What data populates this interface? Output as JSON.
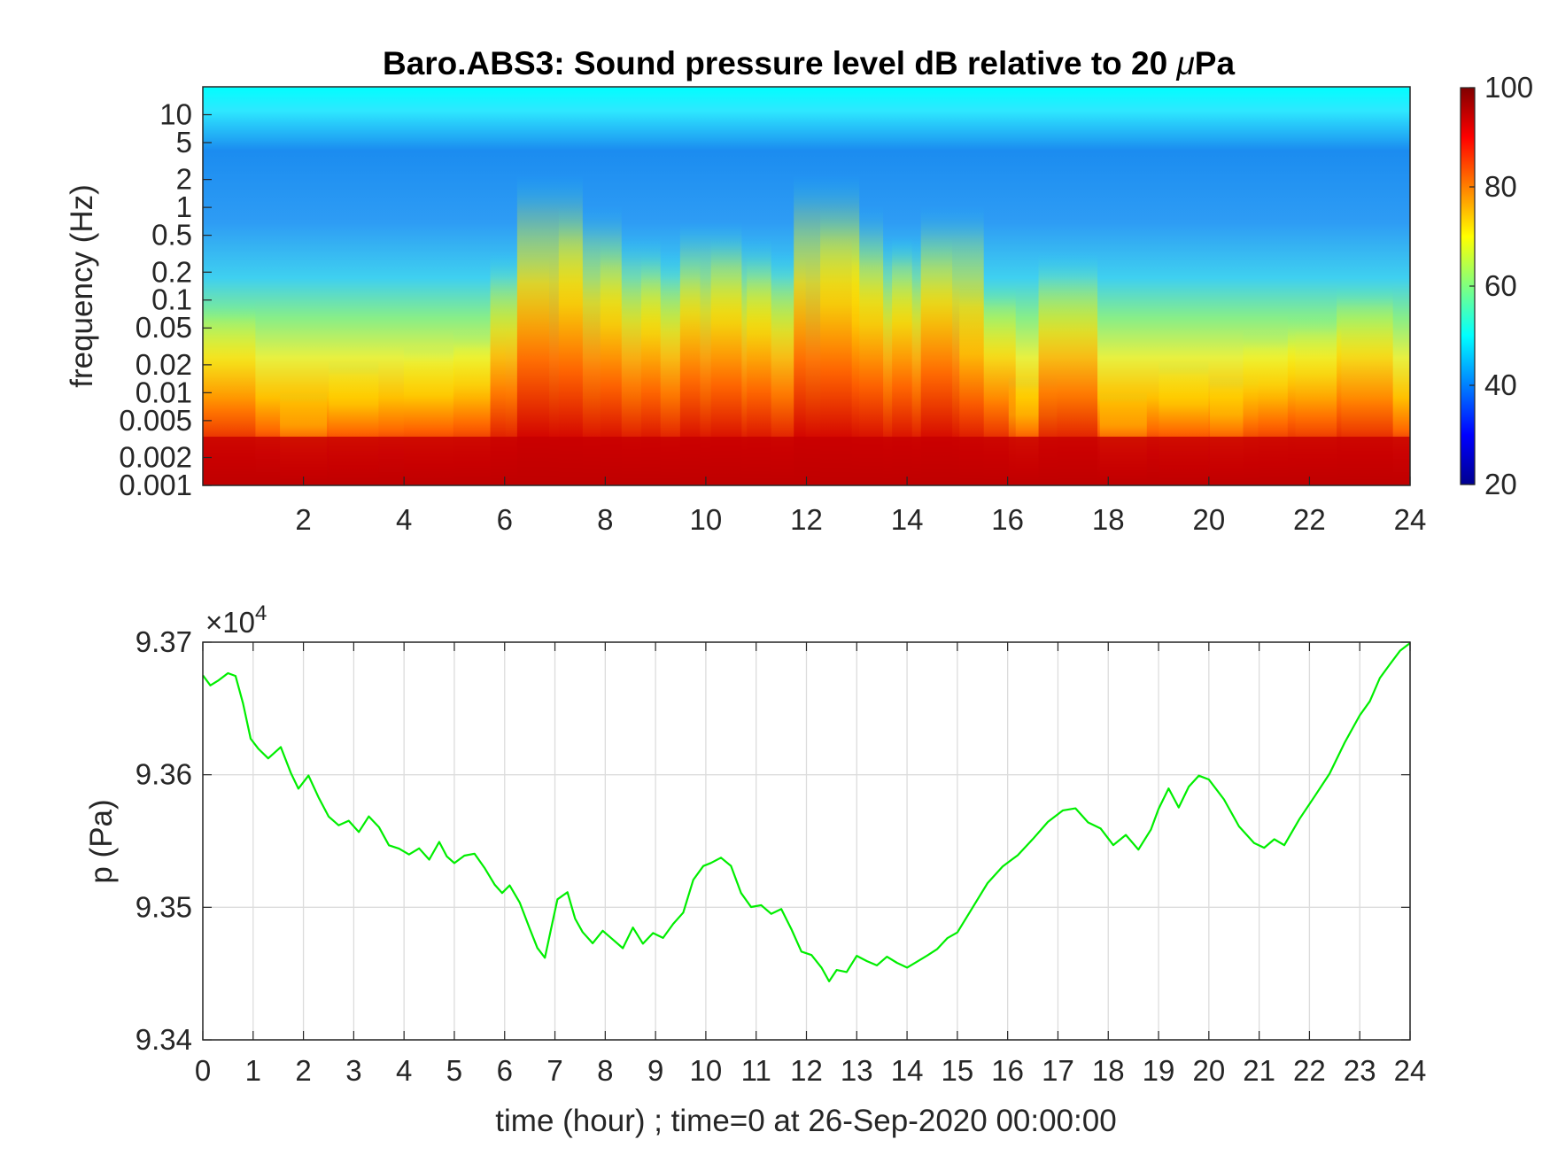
{
  "chart_data": [
    {
      "type": "heatmap",
      "title": "Baro.ABS3: Sound pressure level dB relative to 20 ",
      "title_mu": "μ",
      "title_unit": "Pa",
      "ylabel": "frequency (Hz)",
      "y_scale": "log",
      "xlim": [
        0,
        24
      ],
      "ylim": [
        0.001,
        20
      ],
      "x_ticks": [
        2,
        4,
        6,
        8,
        10,
        12,
        14,
        16,
        18,
        20,
        22,
        24
      ],
      "y_ticks": [
        "10",
        "5",
        "2",
        "1",
        "0.5",
        "0.2",
        "0.1",
        "0.05",
        "0.02",
        "0.01",
        "0.005",
        "0.002",
        "0.001"
      ],
      "y_tick_values": [
        10,
        5,
        2,
        1,
        0.5,
        0.2,
        0.1,
        0.05,
        0.02,
        0.01,
        0.005,
        0.002,
        0.001
      ],
      "colormap": "jet",
      "colorbar": {
        "range": [
          20,
          100
        ],
        "ticks": [
          "100",
          "80",
          "60",
          "40",
          "20"
        ],
        "tick_values": [
          100,
          80,
          60,
          40,
          20
        ]
      },
      "band_intensity": {
        "times": [
          0.5,
          2,
          3,
          4.5,
          5.5,
          6.3,
          6.9,
          7.7,
          8.5,
          9.3,
          10.1,
          10.7,
          11.4,
          12.4,
          12.9,
          13.5,
          14.3,
          14.9,
          15.6,
          16.5,
          17.2,
          18.3,
          19.5,
          20.5,
          21.2,
          22.1,
          23.1
        ],
        "level": [
          0.6,
          0.3,
          0.4,
          0.45,
          0.5,
          0.75,
          1.0,
          0.9,
          0.8,
          0.75,
          0.85,
          0.8,
          0.75,
          1.0,
          0.9,
          0.8,
          0.8,
          0.9,
          0.65,
          0.35,
          0.75,
          0.3,
          0.4,
          0.35,
          0.5,
          0.55,
          0.65
        ]
      }
    },
    {
      "type": "line",
      "ylabel": "p (Pa)",
      "xlabel": "time (hour) ; time=0 at 26-Sep-2020 00:00:00",
      "xlim": [
        0,
        24
      ],
      "ylim": [
        93400,
        93700
      ],
      "y_exponent_prefix": "×10",
      "y_exponent": "4",
      "x_ticks": [
        "0",
        "1",
        "2",
        "3",
        "4",
        "5",
        "6",
        "7",
        "8",
        "9",
        "10",
        "11",
        "12",
        "13",
        "14",
        "15",
        "16",
        "17",
        "18",
        "19",
        "20",
        "21",
        "22",
        "23",
        "24"
      ],
      "y_ticks": [
        "9.34",
        "9.35",
        "9.36",
        "9.37"
      ],
      "y_tick_values": [
        93400,
        93500,
        93600,
        93700
      ],
      "grid": true,
      "line_color": "#00ee00",
      "series": [
        {
          "x": [
            0,
            0.15,
            0.3,
            0.5,
            0.65,
            0.8,
            0.95,
            1.1,
            1.3,
            1.55,
            1.75,
            1.9,
            2.1,
            2.3,
            2.5,
            2.7,
            2.9,
            3.1,
            3.3,
            3.5,
            3.7,
            3.9,
            4.1,
            4.3,
            4.5,
            4.7,
            4.85,
            5.0,
            5.2,
            5.4,
            5.6,
            5.8,
            5.95,
            6.1,
            6.3,
            6.5,
            6.65,
            6.8,
            6.95,
            7.05,
            7.25,
            7.4,
            7.55,
            7.75,
            7.95,
            8.15,
            8.35,
            8.55,
            8.75,
            8.95,
            9.15,
            9.35,
            9.55,
            9.75,
            9.95,
            10.1,
            10.3,
            10.5,
            10.7,
            10.9,
            11.1,
            11.3,
            11.5,
            11.7,
            11.9,
            12.1,
            12.3,
            12.45,
            12.6,
            12.8,
            13.0,
            13.2,
            13.4,
            13.6,
            13.8,
            14.0,
            14.2,
            14.4,
            14.6,
            14.8,
            15.0,
            15.3,
            15.6,
            15.9,
            16.2,
            16.5,
            16.8,
            17.1,
            17.35,
            17.6,
            17.85,
            18.1,
            18.35,
            18.6,
            18.85,
            19.0,
            19.2,
            19.4,
            19.6,
            19.8,
            20.0,
            20.3,
            20.6,
            20.9,
            21.1,
            21.3,
            21.5,
            21.8,
            22.1,
            22.4,
            22.7,
            23.0,
            23.2,
            23.4,
            23.6,
            23.8,
            24.0
          ],
          "y": [
            93675,
            93668,
            93672,
            93678,
            93676,
            93655,
            93628,
            93620,
            93612,
            93620,
            93600,
            93588,
            93598,
            93582,
            93568,
            93562,
            93566,
            93558,
            93570,
            93562,
            93548,
            93545,
            93540,
            93544,
            93535,
            93548,
            93537,
            93532,
            93538,
            93540,
            93530,
            93518,
            93512,
            93518,
            93505,
            93485,
            93470,
            93462,
            93488,
            93505,
            93510,
            93490,
            93480,
            93472,
            93482,
            93476,
            93470,
            93486,
            93474,
            93482,
            93478,
            93488,
            93496,
            93520,
            93530,
            93532,
            93536,
            93530,
            93510,
            93500,
            93502,
            93496,
            93500,
            93485,
            93468,
            93465,
            93455,
            93444,
            93452,
            93450,
            93462,
            93458,
            93455,
            93462,
            93458,
            93455,
            93460,
            93465,
            93470,
            93478,
            93482,
            93500,
            93518,
            93530,
            93538,
            93550,
            93563,
            93572,
            93574,
            93564,
            93560,
            93548,
            93556,
            93545,
            93560,
            93575,
            93590,
            93575,
            93590,
            93598,
            93595,
            93580,
            93560,
            93548,
            93545,
            93552,
            93548,
            93568,
            93585,
            93602,
            93625,
            93645,
            93655,
            93672,
            93682,
            93692,
            93698
          ]
        }
      ]
    }
  ]
}
